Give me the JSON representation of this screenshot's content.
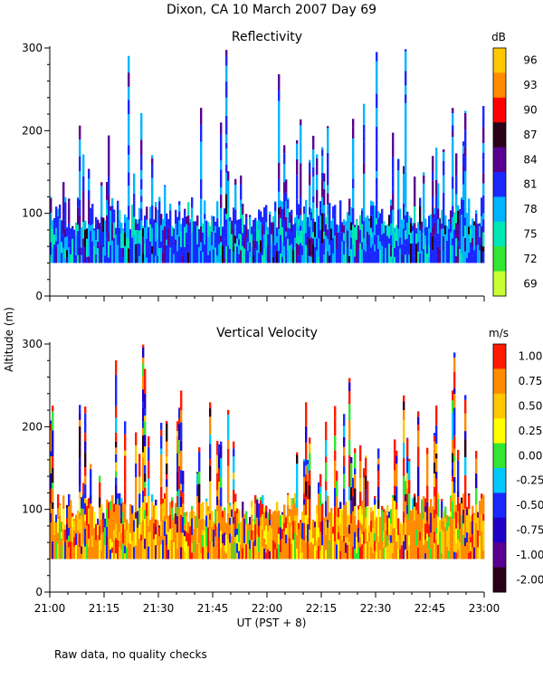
{
  "page": {
    "title": "Dixon, CA 10 March 2007  Day  69",
    "footnote": "Raw data, no quality checks",
    "ylabel": "Altitude  (m)"
  },
  "chart_data": [
    {
      "type": "heatmap",
      "title": "Reflectivity",
      "colorbar_unit": "dB",
      "colorbar_ticks": [
        "96",
        "93",
        "90",
        "87",
        "84",
        "81",
        "78",
        "75",
        "72",
        "69"
      ],
      "colorbar_colors": [
        "#ffc800",
        "#ff8c00",
        "#ff0000",
        "#2a0018",
        "#5a0090",
        "#1a28ff",
        "#00b4ff",
        "#00e6b4",
        "#32e632",
        "#c8ff32"
      ],
      "xlabel": "",
      "ylabel": "Altitude (m)",
      "ylim": [
        0,
        300
      ],
      "yticks": [
        "0",
        "100",
        "200",
        "300"
      ],
      "xlim_minutes": [
        0,
        120
      ],
      "gate_range_m": [
        40,
        120
      ],
      "peak_echo_height_m": 300
    },
    {
      "type": "heatmap",
      "title": "Vertical Velocity",
      "colorbar_unit": "m/s",
      "colorbar_ticks": [
        "1.00",
        "0.75",
        "0.50",
        "0.25",
        "0.00",
        "-0.25",
        "-0.50",
        "-0.75",
        "-1.00",
        "-2.00"
      ],
      "colorbar_colors": [
        "#ff1a00",
        "#ff8c00",
        "#ffc800",
        "#ffff00",
        "#32e632",
        "#00c8ff",
        "#1a28ff",
        "#1e00c8",
        "#5a0090",
        "#2a0018"
      ],
      "xlabel": "UT  (PST + 8)",
      "ylabel": "Altitude (m)",
      "ylim": [
        0,
        300
      ],
      "yticks": [
        "0",
        "100",
        "200",
        "300"
      ],
      "xticks": [
        "21:00",
        "21:15",
        "21:30",
        "21:45",
        "22:00",
        "22:15",
        "22:30",
        "22:45",
        "23:00"
      ],
      "gate_range_m": [
        40,
        120
      ],
      "peak_echo_height_m": 300
    }
  ]
}
